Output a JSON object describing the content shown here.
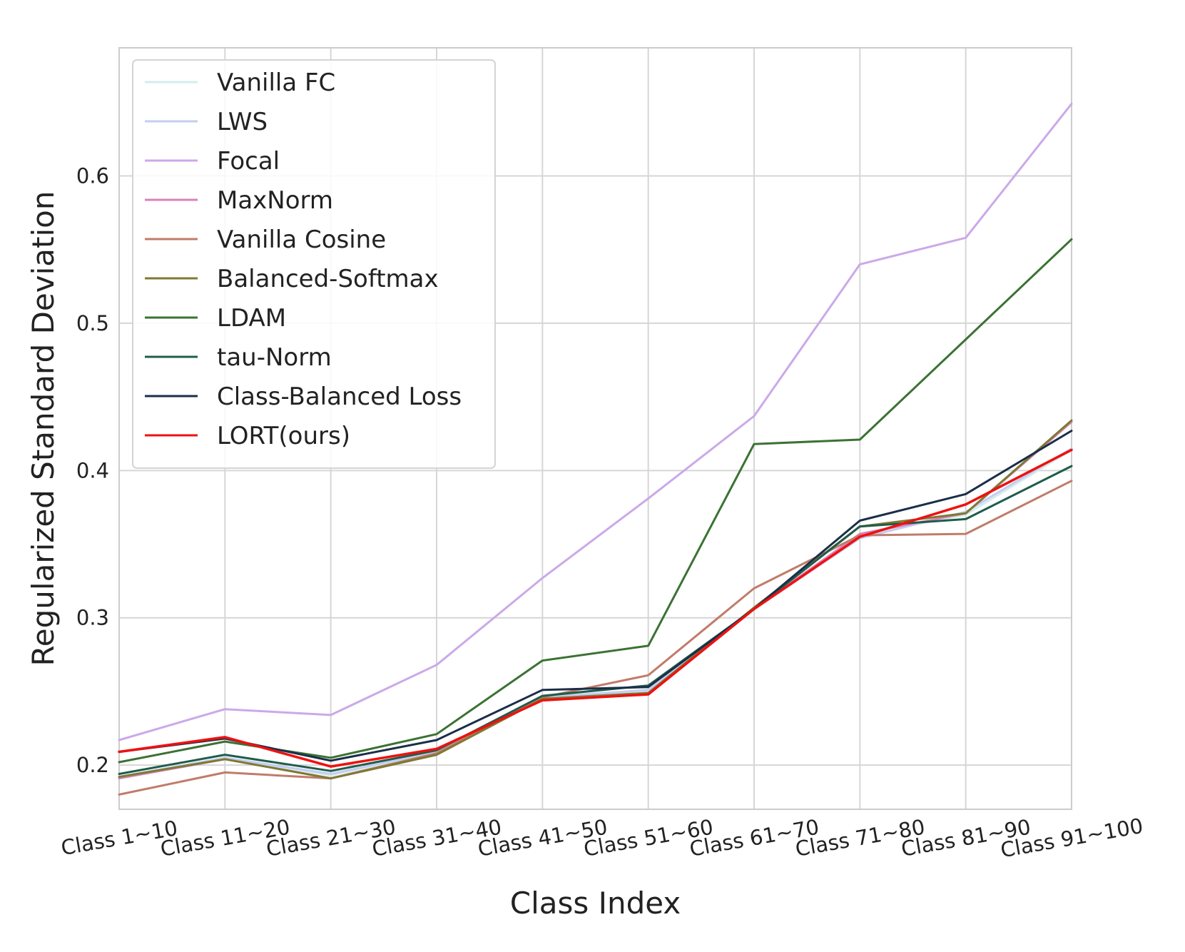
{
  "chart_data": {
    "type": "line",
    "title": "",
    "xlabel": "Class Index",
    "ylabel": "Regularized Standard Deviation",
    "categories": [
      "Class 1~10",
      "Class 11~20",
      "Class 21~30",
      "Class 31~40",
      "Class 41~50",
      "Class 51~60",
      "Class 61~70",
      "Class 71~80",
      "Class 81~90",
      "Class 91~100"
    ],
    "ylim": [
      0.17,
      0.687
    ],
    "yticks": [
      0.2,
      0.3,
      0.4,
      0.5,
      0.6
    ],
    "ytick_labels": [
      "0.2",
      "0.3",
      "0.4",
      "0.5",
      "0.6"
    ],
    "grid": true,
    "legend_position": "top-left",
    "series": [
      {
        "name": "Vanilla FC",
        "color": "#d4ecec",
        "values": [
          0.192,
          0.205,
          0.193,
          0.209,
          0.246,
          0.25,
          0.306,
          0.356,
          0.37,
          0.414
        ]
      },
      {
        "name": "LWS",
        "color": "#c4cdf0",
        "values": [
          0.192,
          0.205,
          0.194,
          0.209,
          0.246,
          0.251,
          0.306,
          0.354,
          0.372,
          0.415
        ]
      },
      {
        "name": "Focal",
        "color": "#cba9e9",
        "values": [
          0.217,
          0.238,
          0.234,
          0.268,
          0.327,
          0.381,
          0.437,
          0.54,
          0.558,
          0.649
        ]
      },
      {
        "name": "MaxNorm",
        "color": "#d982ba",
        "values": [
          0.191,
          0.204,
          0.191,
          0.207,
          0.245,
          0.249,
          0.306,
          0.357,
          0.371,
          0.433
        ]
      },
      {
        "name": "Vanilla Cosine",
        "color": "#c07c6a",
        "values": [
          0.18,
          0.195,
          0.191,
          0.208,
          0.246,
          0.261,
          0.32,
          0.356,
          0.357,
          0.393
        ]
      },
      {
        "name": "Balanced-Softmax",
        "color": "#7e7a33",
        "values": [
          0.192,
          0.204,
          0.191,
          0.207,
          0.245,
          0.249,
          0.307,
          0.362,
          0.371,
          0.434
        ]
      },
      {
        "name": "LDAM",
        "color": "#3b7233",
        "values": [
          0.202,
          0.216,
          0.205,
          0.221,
          0.271,
          0.281,
          0.418,
          0.421,
          0.489,
          0.557
        ]
      },
      {
        "name": "tau-Norm",
        "color": "#1f5d4a",
        "values": [
          0.194,
          0.207,
          0.196,
          0.21,
          0.247,
          0.254,
          0.306,
          0.362,
          0.367,
          0.403
        ]
      },
      {
        "name": "Class-Balanced Loss",
        "color": "#1b2e48",
        "values": [
          0.209,
          0.218,
          0.203,
          0.217,
          0.251,
          0.253,
          0.306,
          0.366,
          0.384,
          0.427
        ]
      },
      {
        "name": "LORT(ours)",
        "color": "#ee1111",
        "values": [
          0.209,
          0.219,
          0.199,
          0.211,
          0.244,
          0.248,
          0.306,
          0.355,
          0.377,
          0.414
        ]
      }
    ]
  }
}
